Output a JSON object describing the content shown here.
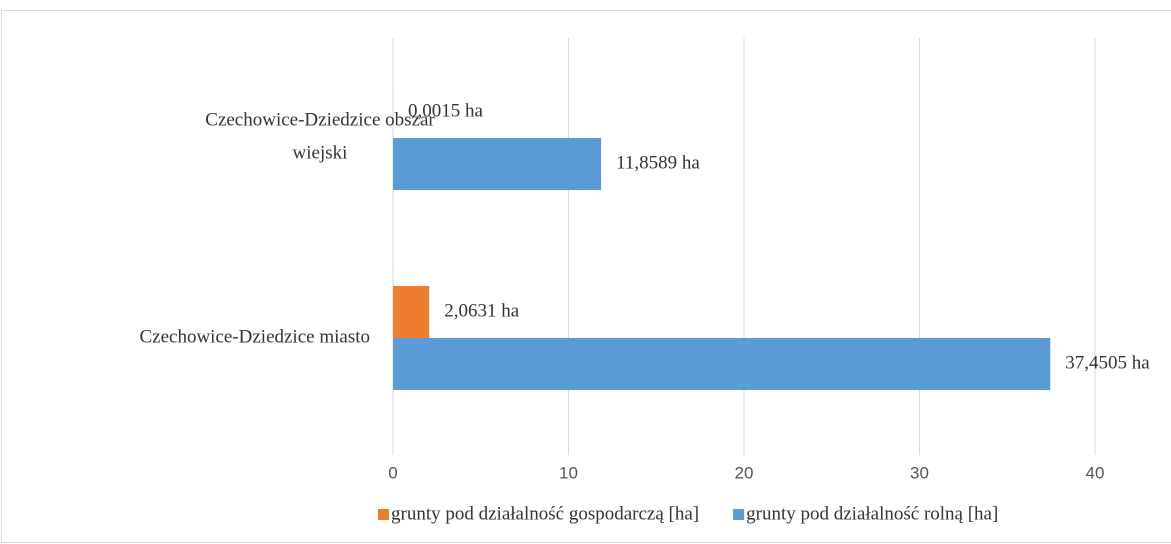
{
  "chart_data": {
    "type": "hbar",
    "categories": [
      "Czechowice-Dziedzice obszar wiejski",
      "Czechowice-Dziedzice miasto"
    ],
    "series": [
      {
        "name": "grunty pod działalność gospodarczą [ha]",
        "color": "#ed7d31",
        "values": [
          0.0015,
          2.0631
        ],
        "value_labels": [
          "0,0015 ha",
          "2,0631 ha"
        ]
      },
      {
        "name": "grunty pod działalność rolną [ha]",
        "color": "#5b9bd5",
        "values": [
          11.8589,
          37.4505
        ],
        "value_labels": [
          "11,8589 ha",
          "37,4505 ha"
        ]
      }
    ],
    "xlim": [
      0,
      40
    ],
    "xticks": [
      0,
      10,
      20,
      30,
      40
    ],
    "grid": true,
    "legend": "bottom"
  }
}
